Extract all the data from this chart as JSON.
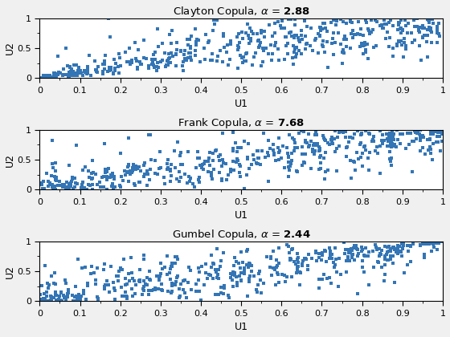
{
  "clayton": {
    "title_plain": "Clayton Copula, ",
    "title_alpha": "α = ",
    "title_val": "2.88",
    "alpha": 2.88,
    "xlabel": "U1",
    "ylabel": "U2"
  },
  "frank": {
    "title_plain": "Frank Copula, ",
    "title_alpha": "α = ",
    "title_val": "7.68",
    "alpha": 7.68,
    "xlabel": "U1",
    "ylabel": "U2"
  },
  "gumbel": {
    "title_plain": "Gumbel Copula, ",
    "title_alpha": "α = ",
    "title_val": "2.44",
    "alpha": 2.44,
    "xlabel": "U1",
    "ylabel": "U2"
  },
  "n_samples": 500,
  "marker": "s",
  "markersize": 3.5,
  "color": "#3375B5",
  "xlim": [
    0,
    1
  ],
  "ylim": [
    0,
    1
  ],
  "xticks": [
    0,
    0.1,
    0.2,
    0.3,
    0.4,
    0.5,
    0.6,
    0.7,
    0.8,
    0.9,
    1
  ],
  "yticks": [
    0,
    0.5,
    1
  ],
  "title_fontsize": 9.5,
  "label_fontsize": 9,
  "tick_fontsize": 8,
  "figsize": [
    5.6,
    4.2
  ],
  "dpi": 100,
  "bg_color": "#f0f0f0"
}
